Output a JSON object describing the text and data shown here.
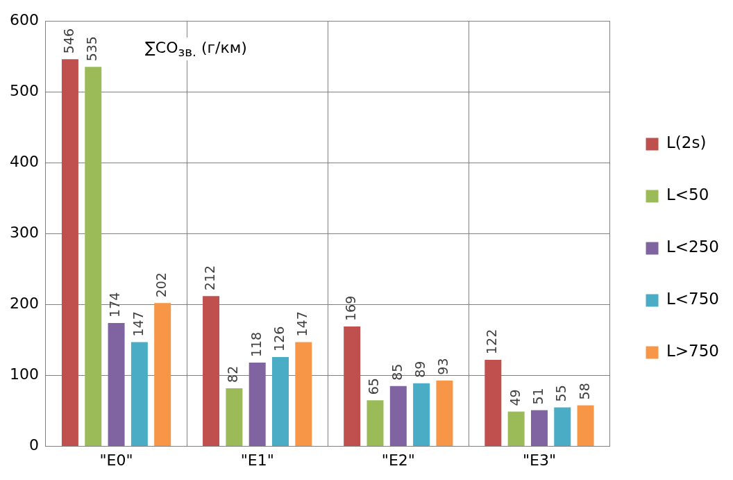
{
  "chart_data": {
    "type": "bar",
    "title": "∑CO$_{зв.}$ (г/км)",
    "categories": [
      "\"E0\"",
      "\"E1\"",
      "\"E2\"",
      "\"E3\""
    ],
    "series": [
      {
        "name": "L(2s)",
        "color": "#c0504d",
        "values": [
          546,
          212,
          169,
          122
        ]
      },
      {
        "name": "L<50",
        "color": "#9bbb59",
        "values": [
          535,
          82,
          65,
          49
        ]
      },
      {
        "name": "L<250",
        "color": "#8064a2",
        "values": [
          174,
          118,
          85,
          51
        ]
      },
      {
        "name": "L<750",
        "color": "#4bacc6",
        "values": [
          147,
          126,
          89,
          55
        ]
      },
      {
        "name": "L>750",
        "color": "#f79646",
        "values": [
          202,
          147,
          93,
          58
        ]
      }
    ],
    "ylim": [
      0,
      600
    ],
    "yticks": [
      0,
      100,
      200,
      300,
      400,
      500,
      600
    ],
    "grid": true,
    "legend": "right",
    "data_labels": true
  }
}
